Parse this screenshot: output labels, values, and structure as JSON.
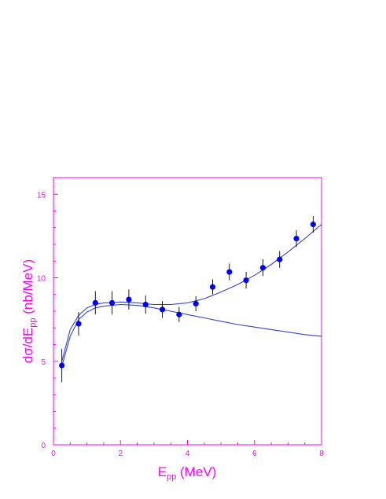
{
  "chart_data": {
    "type": "scatter",
    "title": "",
    "xlabel_main": "E",
    "xlabel_sub": "pp",
    "xlabel_unit": " (MeV)",
    "ylabel_main": "dσ/dE",
    "ylabel_sub": "pp",
    "ylabel_unit": " (nb/MeV)",
    "xlim": [
      0,
      8
    ],
    "ylim": [
      0,
      16
    ],
    "xticks": [
      0,
      2,
      4,
      6,
      8
    ],
    "yticks": [
      0,
      5,
      10,
      15
    ],
    "grid": false,
    "colors": {
      "axes": "#ff00ff",
      "labels": "#ff00ff",
      "data": "#0000ff",
      "curves": "#3344cc",
      "errorbars": "#000000"
    },
    "series": [
      {
        "kind": "points",
        "x": [
          0.25,
          0.75,
          1.25,
          1.75,
          2.25,
          2.75,
          3.25,
          3.75,
          4.25,
          4.75,
          5.25,
          5.75,
          6.25,
          6.75,
          7.25,
          7.75
        ],
        "y": [
          4.75,
          7.25,
          8.5,
          8.5,
          8.7,
          8.4,
          8.1,
          7.8,
          8.45,
          9.45,
          10.35,
          9.85,
          10.6,
          11.1,
          12.35,
          13.2
        ],
        "yerr": [
          1.0,
          0.7,
          0.7,
          0.7,
          0.6,
          0.55,
          0.5,
          0.45,
          0.45,
          0.45,
          0.5,
          0.5,
          0.5,
          0.5,
          0.5,
          0.5
        ]
      },
      {
        "kind": "curve",
        "x": [
          0.25,
          0.5,
          0.75,
          1.0,
          1.25,
          1.5,
          1.75,
          2.0,
          2.5,
          3.0,
          3.5,
          4.0,
          4.5,
          5.0,
          5.5,
          6.0,
          6.5,
          7.0,
          7.5,
          8.0
        ],
        "y": [
          5.0,
          6.9,
          7.75,
          8.2,
          8.4,
          8.5,
          8.52,
          8.55,
          8.5,
          8.4,
          8.4,
          8.5,
          8.75,
          9.15,
          9.6,
          10.15,
          10.8,
          11.55,
          12.35,
          13.2
        ]
      },
      {
        "kind": "curve",
        "x": [
          0.25,
          0.5,
          0.75,
          1.0,
          1.25,
          1.5,
          2.0,
          2.5,
          3.0,
          3.5,
          4.0,
          4.5,
          5.0,
          5.5,
          6.0,
          6.5,
          7.0,
          7.5,
          8.0
        ],
        "y": [
          4.7,
          6.5,
          7.5,
          7.95,
          8.2,
          8.3,
          8.4,
          8.35,
          8.2,
          8.0,
          7.8,
          7.6,
          7.4,
          7.2,
          7.05,
          6.9,
          6.75,
          6.6,
          6.5
        ]
      }
    ]
  }
}
